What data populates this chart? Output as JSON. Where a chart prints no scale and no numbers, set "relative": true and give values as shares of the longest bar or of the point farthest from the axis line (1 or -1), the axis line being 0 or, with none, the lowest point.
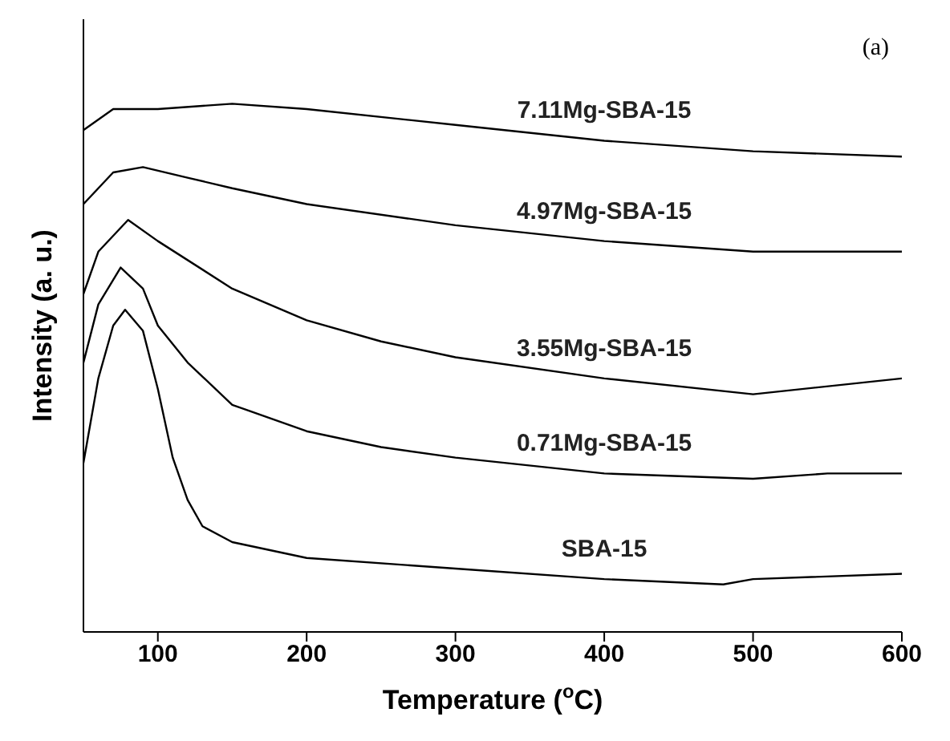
{
  "chart_data": {
    "type": "line",
    "relative": true,
    "xlabel": "Temperature ($^{o}$C)",
    "ylabel": "Intensity (a. u.)",
    "xlim": [
      50,
      600
    ],
    "xticks": [
      100,
      200,
      300,
      400,
      500,
      600
    ],
    "annotations": [
      "(a)"
    ],
    "marker": "none",
    "line_style": "solid",
    "legend": false,
    "grid": false,
    "series": [
      {
        "name": "7.11Mg-SBA-15",
        "color": "#000000",
        "x": [
          50,
          70,
          100,
          150,
          200,
          300,
          400,
          500,
          600
        ],
        "values": [
          0.95,
          0.99,
          0.99,
          1,
          0.99,
          0.96,
          0.93,
          0.91,
          0.9
        ]
      },
      {
        "name": "4.97Mg-SBA-15",
        "color": "#000000",
        "x": [
          50,
          70,
          90,
          120,
          150,
          200,
          300,
          400,
          500,
          600
        ],
        "values": [
          0.81,
          0.87,
          0.88,
          0.86,
          0.84,
          0.81,
          0.77,
          0.74,
          0.72,
          0.72
        ]
      },
      {
        "name": "3.55Mg-SBA-15",
        "color": "#000000",
        "x": [
          50,
          60,
          80,
          100,
          150,
          200,
          250,
          300,
          400,
          500,
          600
        ],
        "values": [
          0.64,
          0.72,
          0.78,
          0.74,
          0.65,
          0.59,
          0.55,
          0.52,
          0.48,
          0.45,
          0.48
        ]
      },
      {
        "name": "0.71Mg-SBA-15",
        "color": "#000000",
        "x": [
          50,
          60,
          75,
          90,
          100,
          120,
          150,
          200,
          250,
          300,
          400,
          500,
          550,
          600
        ],
        "values": [
          0.51,
          0.62,
          0.69,
          0.65,
          0.58,
          0.51,
          0.43,
          0.38,
          0.35,
          0.33,
          0.3,
          0.29,
          0.3,
          0.3
        ]
      },
      {
        "name": "SBA-15",
        "color": "#000000",
        "x": [
          50,
          60,
          70,
          78,
          90,
          100,
          110,
          120,
          130,
          150,
          200,
          300,
          400,
          480,
          500,
          600
        ],
        "values": [
          0.32,
          0.48,
          0.58,
          0.61,
          0.57,
          0.46,
          0.33,
          0.25,
          0.2,
          0.17,
          0.14,
          0.12,
          0.1,
          0.09,
          0.1,
          0.11
        ]
      }
    ]
  }
}
